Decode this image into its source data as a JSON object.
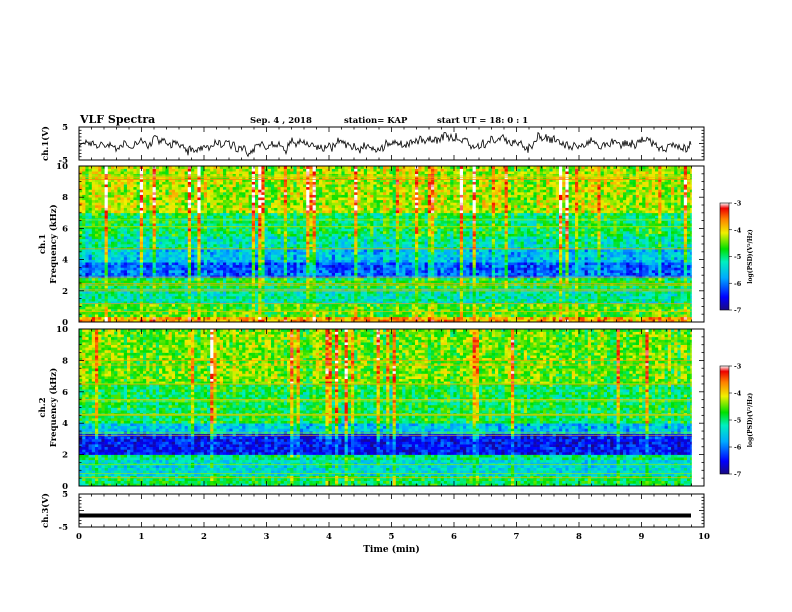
{
  "header": {
    "title": "VLF Spectra",
    "date": "Sep. 4 , 2018",
    "station": "station= KAP",
    "start": "start UT =  18: 0 : 1"
  },
  "chart_data": [
    {
      "type": "line",
      "panel": "ch1-waveform",
      "ylabel": "ch.1(V)",
      "ylim": [
        -5,
        5
      ],
      "yticks": [
        "5",
        "-5"
      ],
      "xlim": [
        0,
        10
      ],
      "data_end_min": 9.8,
      "series": [
        {
          "y_mean": 0.0,
          "y_amplitude": 2.5
        }
      ]
    },
    {
      "type": "heatmap",
      "panel": "ch1-spectrogram",
      "ylabel": "ch.1\nFrequency (kHz)",
      "ylim": [
        0,
        10
      ],
      "yticks": [
        "0",
        "2",
        "4",
        "6",
        "8",
        "10"
      ],
      "xlim": [
        0,
        10
      ],
      "data_end_min": 9.8,
      "colorbar": {
        "label": "log(PSD)(V²/Hz)",
        "range": [
          -7,
          -3
        ],
        "ticks": [
          "-3",
          "-4",
          "-5",
          "-6",
          "-7"
        ]
      },
      "bands_khz": [
        {
          "from": 0.0,
          "to": 0.3,
          "level": -3.8
        },
        {
          "from": 0.3,
          "to": 1.2,
          "level": -4.6
        },
        {
          "from": 1.2,
          "to": 2.2,
          "level": -5.2
        },
        {
          "from": 2.2,
          "to": 2.9,
          "level": -4.8
        },
        {
          "from": 2.9,
          "to": 3.8,
          "level": -6.1
        },
        {
          "from": 3.8,
          "to": 4.6,
          "level": -5.6
        },
        {
          "from": 4.6,
          "to": 5.5,
          "level": -5.2
        },
        {
          "from": 5.5,
          "to": 7.0,
          "level": -4.9
        },
        {
          "from": 7.0,
          "to": 10.0,
          "level": -4.3
        }
      ]
    },
    {
      "type": "heatmap",
      "panel": "ch2-spectrogram",
      "ylabel": "ch.2\nFrequency (kHz)",
      "ylim": [
        0,
        10
      ],
      "yticks": [
        "0",
        "2",
        "4",
        "6",
        "8",
        "10"
      ],
      "xlim": [
        0,
        10
      ],
      "data_end_min": 9.8,
      "colorbar": {
        "label": "log(PSD)(V²/Hz)",
        "range": [
          -7,
          -3
        ],
        "ticks": [
          "-3",
          "-4",
          "-5",
          "-6",
          "-7"
        ]
      },
      "bands_khz": [
        {
          "from": 0.0,
          "to": 0.6,
          "level": -4.9
        },
        {
          "from": 0.6,
          "to": 1.6,
          "level": -5.4
        },
        {
          "from": 1.6,
          "to": 2.0,
          "level": -5.0
        },
        {
          "from": 2.0,
          "to": 3.3,
          "level": -6.5
        },
        {
          "from": 3.3,
          "to": 4.0,
          "level": -5.6
        },
        {
          "from": 4.0,
          "to": 6.5,
          "level": -4.9
        },
        {
          "from": 6.5,
          "to": 10.0,
          "level": -4.5
        }
      ]
    },
    {
      "type": "line",
      "panel": "ch3-waveform",
      "ylabel": "ch.3(V)",
      "ylim": [
        -5,
        5
      ],
      "yticks": [
        "5",
        "-5"
      ],
      "xlim": [
        0,
        10
      ],
      "data_end_min": 9.8,
      "series": [
        {
          "y_mean": -1.5,
          "y_amplitude": 0.1
        }
      ],
      "xlabel": "Time (min)",
      "xticks": [
        "0",
        "1",
        "2",
        "3",
        "4",
        "5",
        "6",
        "7",
        "8",
        "9",
        "10"
      ]
    }
  ],
  "colors": {
    "axis": "#000000",
    "background": "#ffffff"
  }
}
